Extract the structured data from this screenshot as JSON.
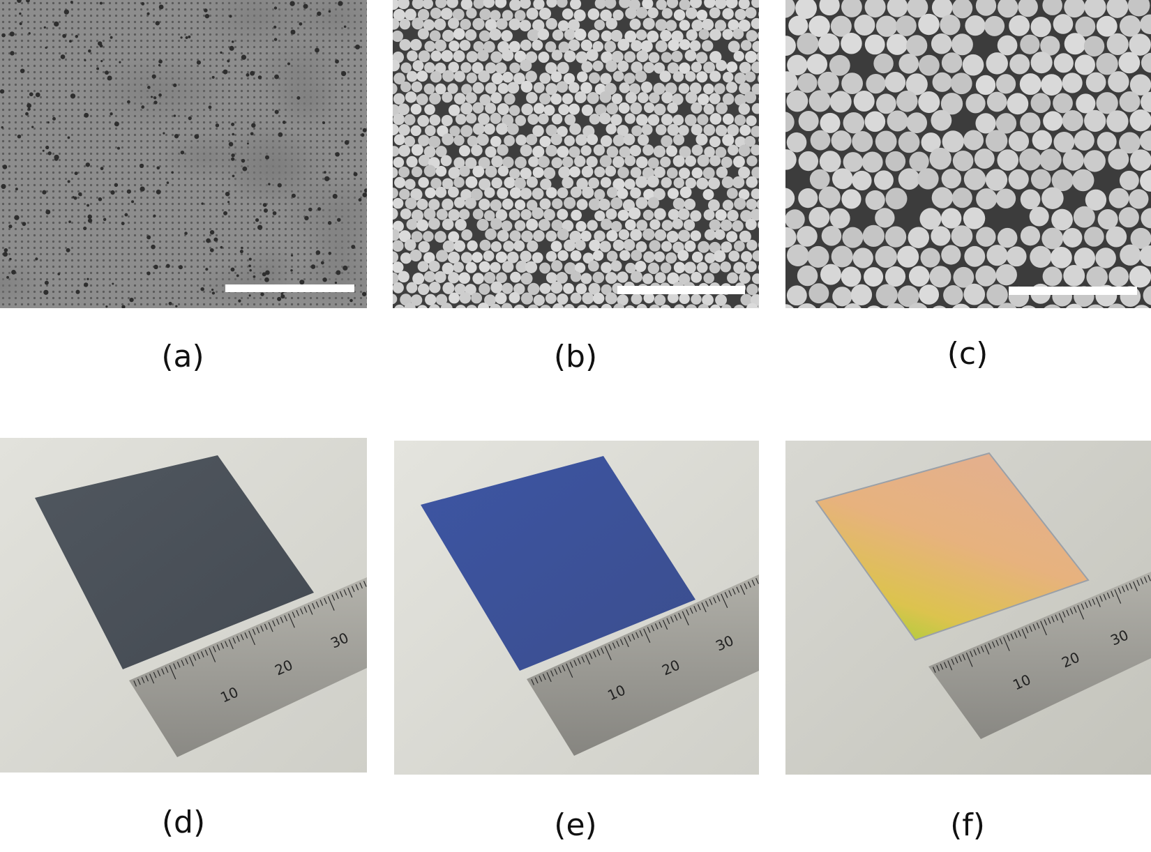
{
  "panels": [
    {
      "id": "a",
      "label": "(a)",
      "kind": "SEM micrograph"
    },
    {
      "id": "b",
      "label": "(b)",
      "kind": "SEM micrograph"
    },
    {
      "id": "c",
      "label": "(c)",
      "kind": "SEM micrograph"
    },
    {
      "id": "d",
      "label": "(d)",
      "kind": "photograph",
      "film_color": "#4b525b"
    },
    {
      "id": "e",
      "label": "(e)",
      "kind": "photograph",
      "film_color": "#3a4f99"
    },
    {
      "id": "f",
      "label": "(f)",
      "kind": "photograph",
      "film_color": "#e0a57c"
    }
  ],
  "ruler_labels": [
    "10",
    "20",
    "30"
  ],
  "colors": {
    "sem_background_a": "#8a8a8a",
    "sem_background_bc": "#3e3e3e",
    "sphere_fill": "#cfcfcf",
    "scale_bar": "#ffffff",
    "photo_background": "#dcdcd6",
    "ruler_metal": "#9a9a94"
  }
}
